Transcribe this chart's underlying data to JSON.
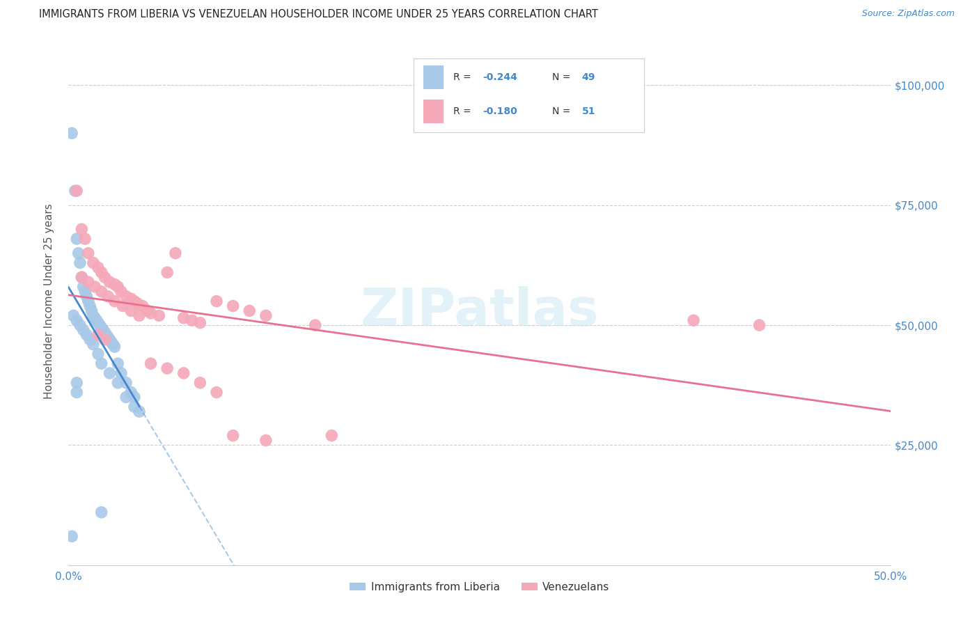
{
  "title": "IMMIGRANTS FROM LIBERIA VS VENEZUELAN HOUSEHOLDER INCOME UNDER 25 YEARS CORRELATION CHART",
  "source": "Source: ZipAtlas.com",
  "ylabel": "Householder Income Under 25 years",
  "xlim": [
    0.0,
    0.5
  ],
  "ylim": [
    0,
    110000
  ],
  "yticks": [
    0,
    25000,
    50000,
    75000,
    100000
  ],
  "color_liberia": "#a8c8e8",
  "color_venezuela": "#f4a8b8",
  "color_liberia_line": "#4488cc",
  "color_venezuela_line": "#e87090",
  "color_axis_labels": "#4488cc",
  "watermark": "ZIPatlas",
  "legend_label_liberia": "Immigrants from Liberia",
  "legend_label_venezuela": "Venezuelans",
  "liberia_x": [
    0.002,
    0.004,
    0.005,
    0.006,
    0.007,
    0.008,
    0.009,
    0.01,
    0.011,
    0.012,
    0.013,
    0.014,
    0.015,
    0.016,
    0.017,
    0.018,
    0.019,
    0.02,
    0.021,
    0.022,
    0.023,
    0.024,
    0.025,
    0.026,
    0.027,
    0.028,
    0.03,
    0.032,
    0.035,
    0.038,
    0.04,
    0.043,
    0.003,
    0.005,
    0.007,
    0.009,
    0.011,
    0.013,
    0.015,
    0.018,
    0.02,
    0.025,
    0.03,
    0.035,
    0.04,
    0.02,
    0.005,
    0.005,
    0.002
  ],
  "liberia_y": [
    90000,
    78000,
    68000,
    65000,
    63000,
    60000,
    58000,
    57000,
    56000,
    55000,
    54000,
    53000,
    52000,
    51500,
    51000,
    50500,
    50000,
    49500,
    49000,
    48500,
    48000,
    47500,
    47000,
    46500,
    46000,
    45500,
    42000,
    40000,
    38000,
    36000,
    35000,
    32000,
    52000,
    51000,
    50000,
    49000,
    48000,
    47000,
    46000,
    44000,
    42000,
    40000,
    38000,
    35000,
    33000,
    11000,
    38000,
    36000,
    6000
  ],
  "venezuela_x": [
    0.005,
    0.008,
    0.01,
    0.012,
    0.015,
    0.018,
    0.02,
    0.022,
    0.025,
    0.028,
    0.03,
    0.032,
    0.035,
    0.038,
    0.04,
    0.042,
    0.045,
    0.048,
    0.05,
    0.055,
    0.06,
    0.065,
    0.07,
    0.075,
    0.08,
    0.09,
    0.1,
    0.11,
    0.12,
    0.15,
    0.38,
    0.42,
    0.008,
    0.012,
    0.016,
    0.02,
    0.024,
    0.028,
    0.033,
    0.038,
    0.043,
    0.05,
    0.06,
    0.07,
    0.08,
    0.09,
    0.1,
    0.12,
    0.018,
    0.022,
    0.16
  ],
  "venezuela_y": [
    78000,
    70000,
    68000,
    65000,
    63000,
    62000,
    61000,
    60000,
    59000,
    58500,
    58000,
    57000,
    56000,
    55500,
    55000,
    54500,
    54000,
    53000,
    52500,
    52000,
    61000,
    65000,
    51500,
    51000,
    50500,
    55000,
    54000,
    53000,
    52000,
    50000,
    51000,
    50000,
    60000,
    59000,
    58000,
    57000,
    56000,
    55000,
    54000,
    53000,
    52000,
    42000,
    41000,
    40000,
    38000,
    36000,
    27000,
    26000,
    48000,
    47000,
    27000
  ]
}
